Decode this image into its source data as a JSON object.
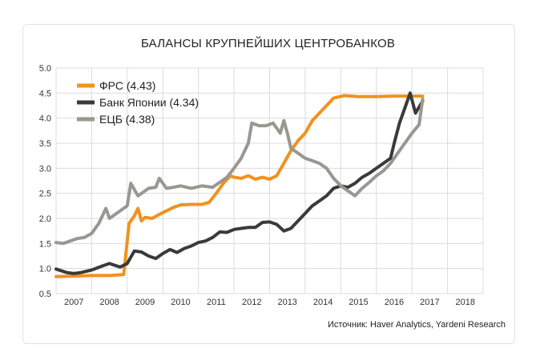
{
  "chart_data": {
    "type": "line",
    "title": "БАЛАНСЫ КРУПНЕЙШИХ ЦЕНТРОБАНКОВ",
    "source": "Источник: Haver Analytics, Yardeni Research",
    "xlabel": "",
    "ylabel": "",
    "xlim": [
      2006.5,
      2018.5
    ],
    "ylim": [
      0.5,
      5.0
    ],
    "y_ticks": [
      "0.5",
      "1.0",
      "1.5",
      "2.0",
      "2.5",
      "3.0",
      "3.5",
      "4.0",
      "4.5",
      "5.0"
    ],
    "x_ticks": [
      "2007",
      "2008",
      "2009",
      "2010",
      "2011",
      "2012",
      "2013",
      "2014",
      "2015",
      "2016",
      "2017",
      "2018"
    ],
    "grid": true,
    "legend_position": "top-left",
    "series": [
      {
        "name": "ФРС (4.43)",
        "color": "#f0921e",
        "x": [
          2006.5,
          2007.0,
          2007.5,
          2008.0,
          2008.4,
          2008.55,
          2008.7,
          2008.8,
          2008.9,
          2009.0,
          2009.2,
          2009.4,
          2009.6,
          2009.8,
          2010.0,
          2010.3,
          2010.6,
          2010.8,
          2011.0,
          2011.2,
          2011.4,
          2011.5,
          2011.7,
          2011.9,
          2012.1,
          2012.3,
          2012.5,
          2012.7,
          2012.9,
          2013.1,
          2013.3,
          2013.5,
          2013.7,
          2013.9,
          2014.1,
          2014.3,
          2014.6,
          2015.0,
          2015.5,
          2016.0,
          2016.5,
          2016.8
        ],
        "values": [
          0.84,
          0.85,
          0.86,
          0.86,
          0.88,
          1.9,
          2.05,
          2.2,
          1.95,
          2.02,
          2.0,
          2.08,
          2.15,
          2.22,
          2.27,
          2.28,
          2.28,
          2.32,
          2.5,
          2.7,
          2.85,
          2.82,
          2.8,
          2.85,
          2.78,
          2.82,
          2.78,
          2.85,
          3.1,
          3.35,
          3.55,
          3.7,
          3.95,
          4.1,
          4.25,
          4.4,
          4.45,
          4.43,
          4.43,
          4.44,
          4.44,
          4.44
        ]
      },
      {
        "name": "Банк Японии (4.34)",
        "color": "#3a3a3a",
        "x": [
          2006.5,
          2006.8,
          2007.0,
          2007.2,
          2007.5,
          2007.8,
          2008.0,
          2008.3,
          2008.5,
          2008.7,
          2008.9,
          2009.1,
          2009.3,
          2009.5,
          2009.7,
          2009.9,
          2010.1,
          2010.3,
          2010.5,
          2010.7,
          2010.9,
          2011.1,
          2011.3,
          2011.5,
          2011.7,
          2011.9,
          2012.1,
          2012.3,
          2012.5,
          2012.7,
          2012.9,
          2013.1,
          2013.3,
          2013.5,
          2013.7,
          2013.9,
          2014.1,
          2014.3,
          2014.5,
          2014.7,
          2014.9,
          2015.1,
          2015.3,
          2015.5,
          2015.7,
          2015.9,
          2016.0,
          2016.15,
          2016.3,
          2016.45,
          2016.6,
          2016.8
        ],
        "values": [
          0.99,
          0.92,
          0.9,
          0.92,
          0.97,
          1.05,
          1.1,
          1.03,
          1.1,
          1.35,
          1.33,
          1.25,
          1.2,
          1.3,
          1.38,
          1.32,
          1.4,
          1.45,
          1.52,
          1.55,
          1.62,
          1.73,
          1.72,
          1.78,
          1.8,
          1.82,
          1.82,
          1.92,
          1.93,
          1.88,
          1.75,
          1.8,
          1.95,
          2.1,
          2.25,
          2.35,
          2.45,
          2.6,
          2.65,
          2.62,
          2.7,
          2.82,
          2.9,
          3.0,
          3.1,
          3.2,
          3.5,
          3.9,
          4.2,
          4.5,
          4.1,
          4.34
        ]
      },
      {
        "name": "ЕЦБ (4.38)",
        "color": "#9a9690",
        "x": [
          2006.5,
          2006.7,
          2006.9,
          2007.1,
          2007.3,
          2007.5,
          2007.7,
          2007.9,
          2008.0,
          2008.1,
          2008.3,
          2008.5,
          2008.6,
          2008.8,
          2008.9,
          2009.1,
          2009.3,
          2009.4,
          2009.6,
          2009.8,
          2010.0,
          2010.3,
          2010.6,
          2010.9,
          2011.1,
          2011.3,
          2011.5,
          2011.7,
          2011.9,
          2012.0,
          2012.2,
          2012.4,
          2012.6,
          2012.8,
          2012.9,
          2013.0,
          2013.1,
          2013.3,
          2013.5,
          2013.7,
          2013.9,
          2014.1,
          2014.3,
          2014.5,
          2014.7,
          2014.9,
          2015.1,
          2015.3,
          2015.5,
          2015.7,
          2015.9,
          2016.1,
          2016.3,
          2016.5,
          2016.7,
          2016.8
        ],
        "values": [
          1.52,
          1.5,
          1.55,
          1.6,
          1.62,
          1.7,
          1.9,
          2.2,
          2.0,
          2.05,
          2.15,
          2.25,
          2.7,
          2.45,
          2.5,
          2.6,
          2.62,
          2.8,
          2.6,
          2.62,
          2.65,
          2.6,
          2.65,
          2.62,
          2.72,
          2.82,
          3.0,
          3.2,
          3.5,
          3.9,
          3.85,
          3.85,
          3.9,
          3.7,
          3.95,
          3.7,
          3.4,
          3.3,
          3.2,
          3.15,
          3.1,
          3.0,
          2.8,
          2.65,
          2.55,
          2.45,
          2.6,
          2.72,
          2.85,
          2.95,
          3.1,
          3.3,
          3.5,
          3.7,
          3.87,
          4.38
        ]
      }
    ]
  }
}
